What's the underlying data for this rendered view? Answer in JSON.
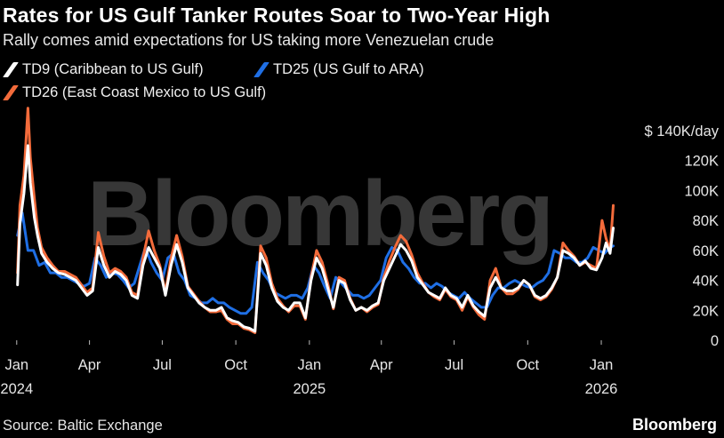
{
  "title": "Rates for US Gulf Tanker Routes Soar to Two-Year High",
  "subtitle": "Rally comes amid expectations for US taking more Venezuelan crude",
  "source": "Source: Baltic Exchange",
  "brand": "Bloomberg",
  "watermark": "Bloomberg",
  "colors": {
    "TD9": "#ffffff",
    "TD25": "#1f6fe5",
    "TD26": "#f36b3b",
    "tick": "#bbbbbb"
  },
  "chart_data": {
    "type": "line",
    "y_unit_label": "$ 140K/day",
    "ylim": [
      0,
      140000
    ],
    "y_ticks": [
      0,
      20000,
      40000,
      60000,
      80000,
      100000,
      120000,
      140000
    ],
    "y_tick_labels": [
      "0",
      "20K",
      "40K",
      "60K",
      "80K",
      "100K",
      "120K",
      "$ 140K/day"
    ],
    "x_ticks": [
      {
        "date": "2024-01-01",
        "label": "Jan",
        "year": "2024"
      },
      {
        "date": "2024-04-01",
        "label": "Apr",
        "year": ""
      },
      {
        "date": "2024-07-01",
        "label": "Jul",
        "year": ""
      },
      {
        "date": "2024-10-01",
        "label": "Oct",
        "year": ""
      },
      {
        "date": "2025-01-01",
        "label": "Jan",
        "year": "2025"
      },
      {
        "date": "2025-04-01",
        "label": "Apr",
        "year": ""
      },
      {
        "date": "2025-07-01",
        "label": "Jul",
        "year": ""
      },
      {
        "date": "2025-10-01",
        "label": "Oct",
        "year": ""
      },
      {
        "date": "2026-01-01",
        "label": "Jan",
        "year": "2026"
      }
    ],
    "xlim": [
      "2023-12-20",
      "2026-01-31"
    ],
    "legend_placement": "top-left",
    "series": [
      {
        "name": "TD9 (Caribbean to US Gulf)",
        "key": "TD9",
        "x": [
          "2024-01-02",
          "2024-01-05",
          "2024-01-10",
          "2024-01-15",
          "2024-01-18",
          "2024-01-23",
          "2024-01-27",
          "2024-02-01",
          "2024-02-08",
          "2024-02-15",
          "2024-02-22",
          "2024-03-01",
          "2024-03-08",
          "2024-03-15",
          "2024-03-22",
          "2024-03-29",
          "2024-04-05",
          "2024-04-12",
          "2024-04-19",
          "2024-04-26",
          "2024-05-03",
          "2024-05-10",
          "2024-05-17",
          "2024-05-24",
          "2024-05-31",
          "2024-06-07",
          "2024-06-14",
          "2024-06-21",
          "2024-06-28",
          "2024-07-05",
          "2024-07-12",
          "2024-07-19",
          "2024-07-26",
          "2024-08-02",
          "2024-08-09",
          "2024-08-16",
          "2024-08-23",
          "2024-08-30",
          "2024-09-06",
          "2024-09-13",
          "2024-09-20",
          "2024-09-27",
          "2024-10-04",
          "2024-10-11",
          "2024-10-18",
          "2024-10-25",
          "2024-11-01",
          "2024-11-08",
          "2024-11-15",
          "2024-11-22",
          "2024-11-29",
          "2024-12-06",
          "2024-12-13",
          "2024-12-20",
          "2024-12-27",
          "2025-01-03",
          "2025-01-10",
          "2025-01-17",
          "2025-01-24",
          "2025-01-31",
          "2025-02-07",
          "2025-02-14",
          "2025-02-21",
          "2025-02-28",
          "2025-03-07",
          "2025-03-14",
          "2025-03-21",
          "2025-03-28",
          "2025-04-04",
          "2025-04-11",
          "2025-04-18",
          "2025-04-25",
          "2025-05-02",
          "2025-05-09",
          "2025-05-16",
          "2025-05-23",
          "2025-05-30",
          "2025-06-06",
          "2025-06-13",
          "2025-06-20",
          "2025-06-27",
          "2025-07-04",
          "2025-07-11",
          "2025-07-18",
          "2025-07-25",
          "2025-08-01",
          "2025-08-08",
          "2025-08-15",
          "2025-08-22",
          "2025-08-29",
          "2025-09-05",
          "2025-09-12",
          "2025-09-19",
          "2025-09-26",
          "2025-10-03",
          "2025-10-10",
          "2025-10-17",
          "2025-10-24",
          "2025-10-31",
          "2025-11-07",
          "2025-11-14",
          "2025-11-21",
          "2025-11-28",
          "2025-12-05",
          "2025-12-12",
          "2025-12-19",
          "2025-12-26",
          "2026-01-02",
          "2026-01-07",
          "2026-01-12",
          "2026-01-16"
        ],
        "values": [
          37000,
          78000,
          98000,
          130000,
          105000,
          82000,
          70000,
          58000,
          52000,
          48000,
          45000,
          44000,
          42000,
          40000,
          35000,
          30000,
          33000,
          62000,
          50000,
          42000,
          46000,
          44000,
          40000,
          30000,
          28000,
          50000,
          62000,
          55000,
          48000,
          30000,
          50000,
          64000,
          52000,
          35000,
          30000,
          25000,
          22000,
          20000,
          20000,
          22000,
          15000,
          13000,
          12000,
          9000,
          8000,
          6000,
          58000,
          50000,
          35000,
          26000,
          22000,
          20000,
          25000,
          25000,
          15000,
          40000,
          55000,
          48000,
          35000,
          22000,
          40000,
          38000,
          27000,
          20000,
          22000,
          20000,
          23000,
          25000,
          40000,
          48000,
          56000,
          64000,
          60000,
          53000,
          42000,
          37000,
          32000,
          30000,
          28000,
          35000,
          30000,
          28000,
          22000,
          30000,
          23000,
          19000,
          16000,
          35000,
          42000,
          35000,
          33000,
          33000,
          35000,
          40000,
          37000,
          30000,
          28000,
          30000,
          35000,
          42000,
          60000,
          58000,
          55000,
          50000,
          53000,
          48000,
          47000,
          55000,
          65000,
          58000,
          75000
        ]
      },
      {
        "name": "TD25 (US Gulf to ARA)",
        "key": "TD25",
        "x": [
          "2024-01-02",
          "2024-01-08",
          "2024-01-15",
          "2024-01-22",
          "2024-01-29",
          "2024-02-05",
          "2024-02-12",
          "2024-02-19",
          "2024-02-26",
          "2024-03-04",
          "2024-03-11",
          "2024-03-18",
          "2024-03-25",
          "2024-04-01",
          "2024-04-08",
          "2024-04-15",
          "2024-04-22",
          "2024-04-29",
          "2024-05-06",
          "2024-05-13",
          "2024-05-20",
          "2024-05-27",
          "2024-06-03",
          "2024-06-10",
          "2024-06-17",
          "2024-06-24",
          "2024-07-01",
          "2024-07-08",
          "2024-07-15",
          "2024-07-22",
          "2024-07-29",
          "2024-08-05",
          "2024-08-12",
          "2024-08-19",
          "2024-08-26",
          "2024-09-02",
          "2024-09-09",
          "2024-09-16",
          "2024-09-23",
          "2024-09-30",
          "2024-10-07",
          "2024-10-14",
          "2024-10-21",
          "2024-10-28",
          "2024-11-04",
          "2024-11-11",
          "2024-11-18",
          "2024-11-25",
          "2024-12-02",
          "2024-12-09",
          "2024-12-16",
          "2024-12-23",
          "2024-12-30",
          "2025-01-06",
          "2025-01-13",
          "2025-01-20",
          "2025-01-27",
          "2025-02-03",
          "2025-02-10",
          "2025-02-17",
          "2025-02-24",
          "2025-03-03",
          "2025-03-10",
          "2025-03-17",
          "2025-03-24",
          "2025-03-31",
          "2025-04-07",
          "2025-04-14",
          "2025-04-21",
          "2025-04-28",
          "2025-05-05",
          "2025-05-12",
          "2025-05-19",
          "2025-05-26",
          "2025-06-02",
          "2025-06-09",
          "2025-06-16",
          "2025-06-23",
          "2025-06-30",
          "2025-07-07",
          "2025-07-14",
          "2025-07-21",
          "2025-07-28",
          "2025-08-04",
          "2025-08-11",
          "2025-08-18",
          "2025-08-25",
          "2025-09-01",
          "2025-09-08",
          "2025-09-15",
          "2025-09-22",
          "2025-09-29",
          "2025-10-06",
          "2025-10-13",
          "2025-10-20",
          "2025-10-27",
          "2025-11-03",
          "2025-11-10",
          "2025-11-17",
          "2025-11-24",
          "2025-12-01",
          "2025-12-08",
          "2025-12-15",
          "2025-12-22",
          "2025-12-29",
          "2026-01-05",
          "2026-01-12",
          "2026-01-16"
        ],
        "values": [
          70000,
          85000,
          60000,
          60000,
          50000,
          52000,
          45000,
          45000,
          42000,
          42000,
          40000,
          38000,
          36000,
          38000,
          55000,
          50000,
          42000,
          45000,
          44000,
          40000,
          35000,
          38000,
          50000,
          62000,
          52000,
          45000,
          40000,
          55000,
          58000,
          45000,
          40000,
          30000,
          28000,
          25000,
          25000,
          28000,
          25000,
          25000,
          22000,
          20000,
          18000,
          18000,
          22000,
          52000,
          45000,
          40000,
          32000,
          30000,
          28000,
          30000,
          30000,
          28000,
          35000,
          50000,
          45000,
          36000,
          28000,
          42000,
          38000,
          34000,
          30000,
          30000,
          28000,
          30000,
          35000,
          40000,
          55000,
          62000,
          60000,
          52000,
          48000,
          42000,
          38000,
          38000,
          35000,
          38000,
          36000,
          32000,
          30000,
          28000,
          32000,
          28000,
          25000,
          22000,
          22000,
          30000,
          35000,
          35000,
          38000,
          40000,
          38000,
          36000,
          35000,
          38000,
          40000,
          45000,
          60000,
          58000,
          55000,
          55000,
          52000,
          52000,
          55000,
          62000,
          60000,
          58000,
          62000,
          63000
        ]
      },
      {
        "name": "TD26 (East Coast Mexico to US Gulf)",
        "key": "TD26",
        "x": [
          "2024-01-02",
          "2024-01-05",
          "2024-01-10",
          "2024-01-15",
          "2024-01-18",
          "2024-01-23",
          "2024-01-27",
          "2024-02-01",
          "2024-02-08",
          "2024-02-15",
          "2024-02-22",
          "2024-03-01",
          "2024-03-08",
          "2024-03-15",
          "2024-03-22",
          "2024-03-29",
          "2024-04-05",
          "2024-04-12",
          "2024-04-19",
          "2024-04-26",
          "2024-05-03",
          "2024-05-10",
          "2024-05-17",
          "2024-05-24",
          "2024-05-31",
          "2024-06-07",
          "2024-06-14",
          "2024-06-21",
          "2024-06-28",
          "2024-07-05",
          "2024-07-12",
          "2024-07-19",
          "2024-07-26",
          "2024-08-02",
          "2024-08-09",
          "2024-08-16",
          "2024-08-23",
          "2024-08-30",
          "2024-09-06",
          "2024-09-13",
          "2024-09-20",
          "2024-09-27",
          "2024-10-04",
          "2024-10-11",
          "2024-10-18",
          "2024-10-25",
          "2024-11-01",
          "2024-11-08",
          "2024-11-15",
          "2024-11-22",
          "2024-11-29",
          "2024-12-06",
          "2024-12-13",
          "2024-12-20",
          "2024-12-27",
          "2025-01-03",
          "2025-01-10",
          "2025-01-17",
          "2025-01-24",
          "2025-01-31",
          "2025-02-07",
          "2025-02-14",
          "2025-02-21",
          "2025-02-28",
          "2025-03-07",
          "2025-03-14",
          "2025-03-21",
          "2025-03-28",
          "2025-04-04",
          "2025-04-11",
          "2025-04-18",
          "2025-04-25",
          "2025-05-02",
          "2025-05-09",
          "2025-05-16",
          "2025-05-23",
          "2025-05-30",
          "2025-06-06",
          "2025-06-13",
          "2025-06-20",
          "2025-06-27",
          "2025-07-04",
          "2025-07-11",
          "2025-07-18",
          "2025-07-25",
          "2025-08-01",
          "2025-08-08",
          "2025-08-15",
          "2025-08-22",
          "2025-08-29",
          "2025-09-05",
          "2025-09-12",
          "2025-09-19",
          "2025-09-26",
          "2025-10-03",
          "2025-10-10",
          "2025-10-17",
          "2025-10-24",
          "2025-10-31",
          "2025-11-07",
          "2025-11-14",
          "2025-11-21",
          "2025-11-28",
          "2025-12-05",
          "2025-12-12",
          "2025-12-19",
          "2025-12-26",
          "2026-01-02",
          "2026-01-07",
          "2026-01-12",
          "2026-01-16"
        ],
        "values": [
          45000,
          90000,
          110000,
          155000,
          122000,
          95000,
          75000,
          62000,
          55000,
          50000,
          46000,
          46000,
          44000,
          42000,
          37000,
          32000,
          35000,
          72000,
          56000,
          45000,
          48000,
          46000,
          42000,
          32000,
          30000,
          55000,
          73000,
          60000,
          50000,
          32000,
          55000,
          70000,
          56000,
          36000,
          31000,
          26000,
          22000,
          19000,
          19000,
          20000,
          14000,
          11000,
          11000,
          8000,
          7000,
          5000,
          63000,
          55000,
          38000,
          28000,
          23000,
          19000,
          23000,
          23000,
          14000,
          42000,
          60000,
          52000,
          38000,
          21000,
          42000,
          40000,
          28000,
          20000,
          22000,
          19000,
          22000,
          24000,
          42000,
          53000,
          62000,
          70000,
          66000,
          57000,
          45000,
          38000,
          32000,
          29000,
          27000,
          34000,
          29000,
          27000,
          20000,
          29000,
          22000,
          17000,
          14000,
          40000,
          48000,
          35000,
          31000,
          31000,
          34000,
          40000,
          37000,
          29000,
          27000,
          29000,
          34000,
          42000,
          65000,
          60000,
          56000,
          50000,
          52000,
          50000,
          48000,
          80000,
          68000,
          60000,
          90000
        ]
      }
    ]
  }
}
